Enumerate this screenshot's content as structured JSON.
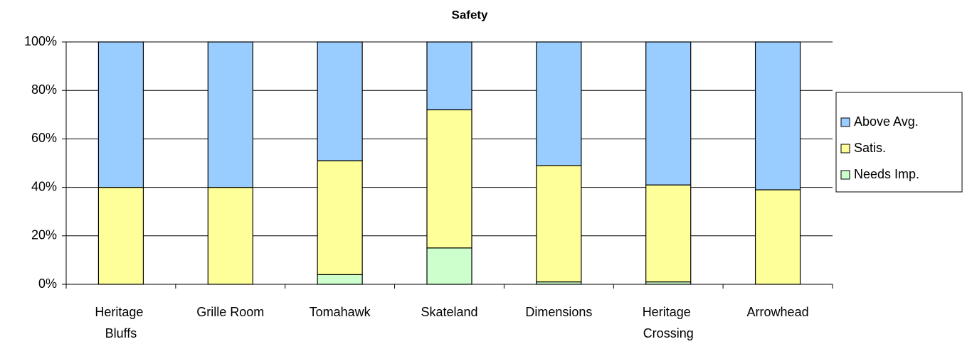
{
  "chart_data": {
    "type": "stacked_bar",
    "title": "Safety",
    "categories": [
      "Heritage Bluffs",
      "Grille Room",
      "Tomahawk",
      "Skateland",
      "Dimensions",
      "Heritage Crossing",
      "Arrowhead"
    ],
    "series": [
      {
        "name": "Needs Imp.",
        "color": "#ccffcc",
        "values": [
          0,
          0,
          4,
          15,
          1,
          1,
          0
        ]
      },
      {
        "name": "Satis.",
        "color": "#ffff99",
        "values": [
          40,
          40,
          47,
          57,
          48,
          40,
          39
        ]
      },
      {
        "name": "Above Avg.",
        "color": "#99ccff",
        "values": [
          60,
          60,
          49,
          28,
          51,
          59,
          61
        ]
      }
    ],
    "ylim": [
      0,
      100
    ],
    "yticks": [
      {
        "value": 0,
        "label": "0%"
      },
      {
        "value": 20,
        "label": "20%"
      },
      {
        "value": 40,
        "label": "40%"
      },
      {
        "value": 60,
        "label": "60%"
      },
      {
        "value": 80,
        "label": "80%"
      },
      {
        "value": 100,
        "label": "100%"
      }
    ],
    "grid": true,
    "legend": "right"
  }
}
